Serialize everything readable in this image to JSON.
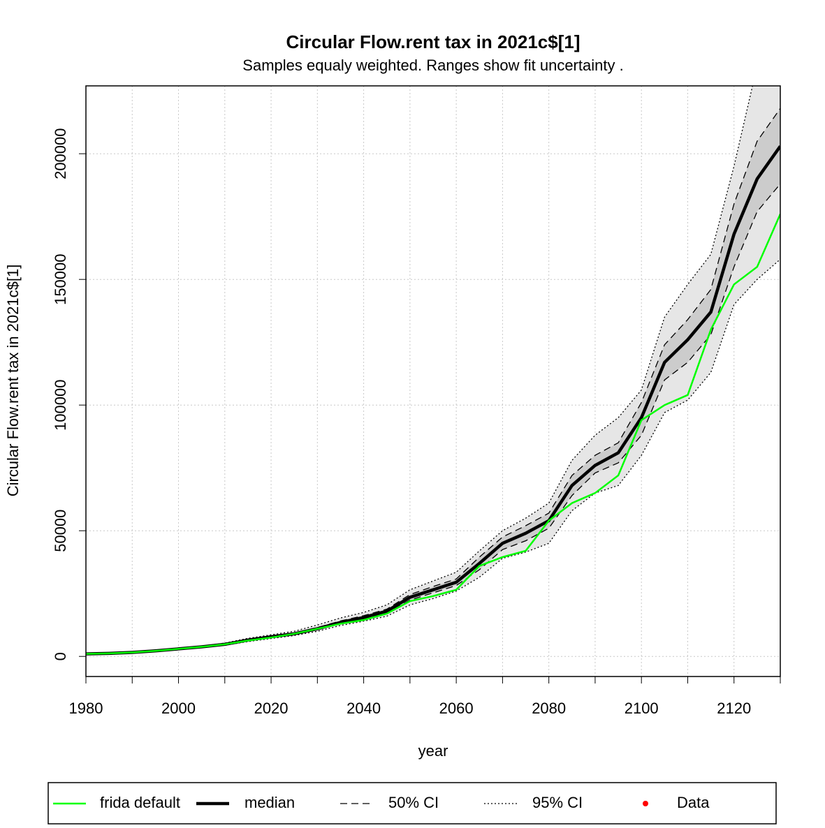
{
  "chart_data": {
    "type": "line",
    "title": "Circular Flow.rent tax in 2021c$[1]",
    "subtitle": "Samples equaly weighted. Ranges show  fit uncertainty .",
    "x_label": "year",
    "y_label": "Circular Flow.rent tax in 2021c$[1]",
    "x": [
      1980,
      1985,
      1990,
      1995,
      2000,
      2005,
      2010,
      2015,
      2020,
      2025,
      2030,
      2035,
      2040,
      2045,
      2050,
      2055,
      2060,
      2065,
      2070,
      2075,
      2080,
      2085,
      2090,
      2095,
      2100,
      2105,
      2110,
      2115,
      2120,
      2125,
      2130
    ],
    "series": [
      {
        "name": "frida default",
        "color": "#00ff00",
        "values": [
          1000,
          1200,
          1600,
          2200,
          3000,
          3800,
          4800,
          6300,
          7500,
          9000,
          11000,
          13000,
          14500,
          17000,
          22000,
          24000,
          26500,
          36000,
          39500,
          42000,
          54000,
          61000,
          65000,
          72000,
          94000,
          100000,
          104000,
          130000,
          148000,
          155000,
          176000
        ]
      },
      {
        "name": "median",
        "color": "#000000",
        "values": [
          1000,
          1200,
          1600,
          2200,
          3000,
          3800,
          4800,
          6500,
          7800,
          9000,
          11000,
          13500,
          15500,
          18000,
          23500,
          26500,
          29500,
          37000,
          45000,
          49000,
          54000,
          68000,
          76000,
          81000,
          95000,
          117000,
          126000,
          137000,
          168000,
          190000,
          203000
        ]
      },
      {
        "name": "50% CI",
        "color": "#000000",
        "fill": "#cccccc",
        "lower": [
          900,
          1100,
          1500,
          2100,
          2900,
          3700,
          4600,
          6200,
          7500,
          8700,
          10600,
          13000,
          14900,
          17300,
          22400,
          25300,
          28200,
          34500,
          42500,
          46000,
          51000,
          64000,
          73000,
          77000,
          88000,
          110000,
          117000,
          128000,
          155000,
          177000,
          188000
        ],
        "upper": [
          1100,
          1300,
          1700,
          2300,
          3100,
          3900,
          5000,
          6800,
          8100,
          9300,
          11500,
          14100,
          16200,
          18800,
          24600,
          27800,
          30800,
          39500,
          47500,
          52000,
          57000,
          72000,
          80000,
          85000,
          101000,
          124000,
          134000,
          146000,
          180000,
          205000,
          218000
        ]
      },
      {
        "name": "95% CI",
        "color": "#000000",
        "fill": "#e6e6e6",
        "lower": [
          800,
          1000,
          1400,
          1900,
          2700,
          3500,
          4400,
          5900,
          7100,
          8300,
          10000,
          12300,
          14000,
          16000,
          20500,
          23000,
          26000,
          31500,
          39000,
          41500,
          45000,
          58000,
          65000,
          68000,
          80000,
          97000,
          102000,
          113000,
          140000,
          150000,
          158000
        ],
        "upper": [
          1200,
          1400,
          1900,
          2500,
          3300,
          4100,
          5300,
          7200,
          8600,
          10000,
          12500,
          15300,
          17500,
          20500,
          26500,
          30000,
          33500,
          42000,
          50000,
          55000,
          61000,
          78000,
          88000,
          95000,
          106000,
          135000,
          148000,
          160000,
          195000,
          235000,
          260000
        ]
      },
      {
        "name": "Data",
        "color": "#ff0000",
        "values": [
          null,
          null,
          null,
          null,
          null,
          null,
          null,
          null,
          null,
          null,
          null,
          null,
          null,
          null,
          null,
          null,
          null,
          null,
          null,
          null,
          null,
          null,
          null,
          null,
          null,
          null,
          null,
          null,
          null,
          null,
          null
        ]
      }
    ],
    "xlim": [
      1980,
      2130
    ],
    "ylim": [
      -8000,
      227000
    ],
    "xticks": [
      1980,
      2000,
      2020,
      2040,
      2060,
      2080,
      2100,
      2120
    ],
    "minor_xticks": [
      1990,
      2010,
      2030,
      2050,
      2070,
      2090,
      2110,
      2130
    ],
    "yticks": [
      0,
      50000,
      100000,
      150000,
      200000
    ],
    "grid": true,
    "legend": "bottom"
  }
}
